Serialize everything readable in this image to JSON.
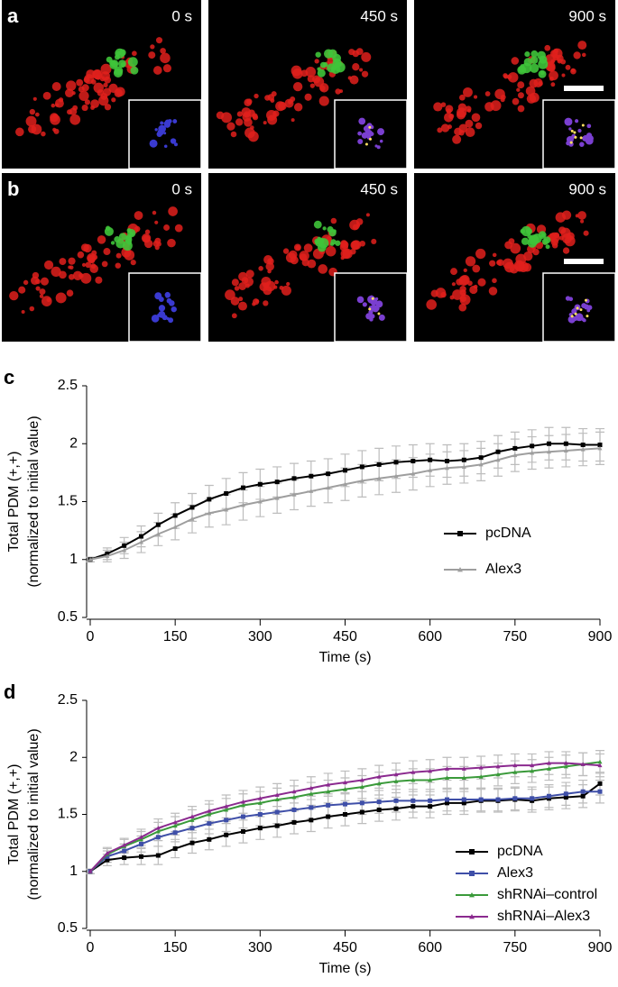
{
  "image_panels": {
    "rows": [
      {
        "label": "a",
        "times": [
          "0 s",
          "450 s",
          "900 s"
        ]
      },
      {
        "label": "b",
        "times": [
          "0 s",
          "450 s",
          "900 s"
        ]
      }
    ]
  },
  "chart_data": [
    {
      "type": "line",
      "panel_label": "c",
      "ylabel": [
        "Total PDM (+,+)",
        "(normalized to initial value)"
      ],
      "xlabel": "Time (s)",
      "x": [
        0,
        30,
        60,
        90,
        120,
        150,
        180,
        210,
        240,
        270,
        300,
        330,
        360,
        390,
        420,
        450,
        480,
        510,
        540,
        570,
        600,
        630,
        660,
        690,
        720,
        750,
        780,
        810,
        840,
        870,
        900
      ],
      "xlim": [
        0,
        900
      ],
      "xticks": [
        0,
        150,
        300,
        450,
        600,
        750,
        900
      ],
      "ylim": [
        0.5,
        2.5
      ],
      "yticks": [
        0.5,
        1,
        1.5,
        2,
        2.5
      ],
      "error_color": "#bdbdbd",
      "series": [
        {
          "name": "pcDNA",
          "color": "#000000",
          "marker": "square",
          "values": [
            1.0,
            1.05,
            1.12,
            1.2,
            1.3,
            1.38,
            1.45,
            1.52,
            1.57,
            1.62,
            1.65,
            1.67,
            1.7,
            1.72,
            1.74,
            1.77,
            1.8,
            1.82,
            1.84,
            1.85,
            1.86,
            1.85,
            1.86,
            1.88,
            1.93,
            1.96,
            1.98,
            2.0,
            2.0,
            1.99,
            1.99
          ],
          "errors": [
            0.02,
            0.05,
            0.07,
            0.09,
            0.1,
            0.11,
            0.12,
            0.12,
            0.13,
            0.13,
            0.13,
            0.13,
            0.13,
            0.13,
            0.13,
            0.14,
            0.14,
            0.14,
            0.14,
            0.14,
            0.14,
            0.14,
            0.14,
            0.14,
            0.14,
            0.14,
            0.14,
            0.14,
            0.14,
            0.14,
            0.14
          ]
        },
        {
          "name": "Alex3",
          "color": "#9e9e9e",
          "marker": "triangle",
          "values": [
            1.0,
            1.03,
            1.08,
            1.15,
            1.22,
            1.28,
            1.35,
            1.4,
            1.43,
            1.47,
            1.5,
            1.53,
            1.56,
            1.59,
            1.62,
            1.65,
            1.68,
            1.7,
            1.72,
            1.74,
            1.77,
            1.79,
            1.8,
            1.82,
            1.86,
            1.9,
            1.92,
            1.93,
            1.94,
            1.95,
            1.96
          ],
          "errors": [
            0.02,
            0.05,
            0.07,
            0.09,
            0.1,
            0.11,
            0.12,
            0.12,
            0.13,
            0.13,
            0.13,
            0.13,
            0.13,
            0.13,
            0.13,
            0.14,
            0.14,
            0.14,
            0.14,
            0.14,
            0.14,
            0.14,
            0.14,
            0.14,
            0.14,
            0.14,
            0.14,
            0.14,
            0.14,
            0.14,
            0.14
          ]
        }
      ]
    },
    {
      "type": "line",
      "panel_label": "d",
      "ylabel": [
        "Total PDM (+,+)",
        "(normalized to initial value)"
      ],
      "xlabel": "Time (s)",
      "x": [
        0,
        30,
        60,
        90,
        120,
        150,
        180,
        210,
        240,
        270,
        300,
        330,
        360,
        390,
        420,
        450,
        480,
        510,
        540,
        570,
        600,
        630,
        660,
        690,
        720,
        750,
        780,
        810,
        840,
        870,
        900
      ],
      "xlim": [
        0,
        900
      ],
      "xticks": [
        0,
        150,
        300,
        450,
        600,
        750,
        900
      ],
      "ylim": [
        0.5,
        2.5
      ],
      "yticks": [
        0.5,
        1,
        1.5,
        2,
        2.5
      ],
      "error_color": "#bdbdbd",
      "series": [
        {
          "name": "pcDNA",
          "color": "#000000",
          "marker": "square",
          "values": [
            1.0,
            1.1,
            1.12,
            1.13,
            1.14,
            1.2,
            1.25,
            1.28,
            1.32,
            1.35,
            1.38,
            1.4,
            1.43,
            1.45,
            1.48,
            1.5,
            1.52,
            1.54,
            1.55,
            1.57,
            1.57,
            1.6,
            1.6,
            1.62,
            1.62,
            1.63,
            1.62,
            1.64,
            1.65,
            1.66,
            1.77
          ],
          "errors": [
            0.02,
            0.05,
            0.06,
            0.07,
            0.08,
            0.08,
            0.09,
            0.09,
            0.1,
            0.1,
            0.1,
            0.1,
            0.1,
            0.1,
            0.1,
            0.1,
            0.1,
            0.1,
            0.1,
            0.1,
            0.1,
            0.1,
            0.1,
            0.1,
            0.1,
            0.1,
            0.1,
            0.1,
            0.1,
            0.1,
            0.1
          ]
        },
        {
          "name": "Alex3",
          "color": "#3f4fa8",
          "marker": "square",
          "values": [
            1.0,
            1.13,
            1.18,
            1.24,
            1.3,
            1.34,
            1.38,
            1.42,
            1.45,
            1.48,
            1.5,
            1.52,
            1.54,
            1.56,
            1.58,
            1.59,
            1.6,
            1.61,
            1.62,
            1.62,
            1.62,
            1.63,
            1.63,
            1.63,
            1.63,
            1.64,
            1.64,
            1.66,
            1.68,
            1.7,
            1.7
          ],
          "errors": [
            0.02,
            0.05,
            0.06,
            0.07,
            0.08,
            0.08,
            0.09,
            0.09,
            0.1,
            0.1,
            0.1,
            0.1,
            0.1,
            0.1,
            0.1,
            0.1,
            0.1,
            0.1,
            0.1,
            0.1,
            0.1,
            0.1,
            0.1,
            0.1,
            0.1,
            0.1,
            0.1,
            0.1,
            0.1,
            0.1,
            0.1
          ]
        },
        {
          "name": "shRNAi–control",
          "color": "#3a9a3a",
          "marker": "triangle",
          "values": [
            1.0,
            1.15,
            1.22,
            1.28,
            1.35,
            1.4,
            1.45,
            1.5,
            1.54,
            1.58,
            1.6,
            1.63,
            1.65,
            1.68,
            1.7,
            1.72,
            1.74,
            1.77,
            1.79,
            1.8,
            1.8,
            1.82,
            1.82,
            1.83,
            1.85,
            1.87,
            1.88,
            1.9,
            1.92,
            1.94,
            1.96
          ],
          "errors": [
            0.02,
            0.05,
            0.06,
            0.07,
            0.08,
            0.08,
            0.09,
            0.09,
            0.1,
            0.1,
            0.1,
            0.1,
            0.1,
            0.1,
            0.1,
            0.1,
            0.1,
            0.1,
            0.1,
            0.1,
            0.1,
            0.1,
            0.1,
            0.1,
            0.1,
            0.1,
            0.1,
            0.1,
            0.1,
            0.1,
            0.1
          ]
        },
        {
          "name": "shRNAi–Alex3",
          "color": "#8b2a8f",
          "marker": "triangle",
          "values": [
            1.0,
            1.16,
            1.23,
            1.3,
            1.38,
            1.43,
            1.48,
            1.53,
            1.57,
            1.61,
            1.64,
            1.67,
            1.7,
            1.73,
            1.76,
            1.78,
            1.8,
            1.83,
            1.85,
            1.87,
            1.88,
            1.9,
            1.9,
            1.91,
            1.92,
            1.93,
            1.93,
            1.95,
            1.95,
            1.94,
            1.93
          ],
          "errors": [
            0.02,
            0.05,
            0.06,
            0.07,
            0.08,
            0.08,
            0.09,
            0.09,
            0.1,
            0.1,
            0.1,
            0.1,
            0.1,
            0.1,
            0.1,
            0.1,
            0.1,
            0.1,
            0.1,
            0.1,
            0.1,
            0.1,
            0.1,
            0.1,
            0.1,
            0.1,
            0.1,
            0.1,
            0.1,
            0.1,
            0.1
          ]
        }
      ]
    }
  ]
}
